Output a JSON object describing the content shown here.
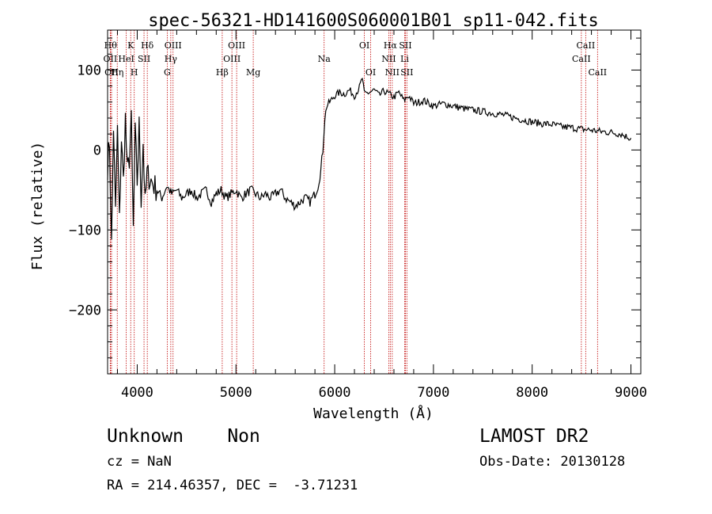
{
  "chart_data": {
    "type": "line",
    "title": "spec-56321-HD141600S060001B01_sp11-042.fits",
    "xlabel": "Wavelength (Å)",
    "ylabel": "Flux (relative)",
    "xlim": [
      3700,
      9100
    ],
    "ylim": [
      -280,
      150
    ],
    "xticks": [
      4000,
      5000,
      6000,
      7000,
      8000,
      9000
    ],
    "xtick_labels": [
      "4000",
      "5000",
      "6000",
      "7000",
      "8000",
      "9000"
    ],
    "yticks": [
      100,
      0,
      -100,
      -200
    ],
    "ytick_labels": [
      "100",
      "0",
      "−100",
      "−200"
    ],
    "line_color": "#000000",
    "marker_color": "#c00000",
    "series": [
      {
        "x": [
          3700,
          3720,
          3740,
          3760,
          3780,
          3800,
          3820,
          3840,
          3860,
          3880,
          3900,
          3920,
          3940,
          3960,
          3980,
          4000,
          4020,
          4040,
          4060,
          4080,
          4100,
          4150,
          4200,
          4250,
          4300,
          4350,
          4400,
          4450,
          4500,
          4550,
          4600,
          4650,
          4700,
          4750,
          4800,
          4850,
          4900,
          4950,
          5000,
          5050,
          5100,
          5150,
          5200,
          5250,
          5300,
          5350,
          5400,
          5450,
          5500,
          5550,
          5600,
          5650,
          5700,
          5750,
          5800,
          5830,
          5860,
          5880,
          5900,
          5920,
          5950,
          6000,
          6050,
          6100,
          6150,
          6200,
          6250,
          6280,
          6300,
          6350,
          6400,
          6450,
          6500,
          6550,
          6600,
          6650,
          6700,
          6750,
          6800,
          6900,
          7000,
          7100,
          7200,
          7300,
          7400,
          7500,
          7600,
          7700,
          7800,
          7900,
          8000,
          8100,
          8200,
          8300,
          8400,
          8500,
          8600,
          8700,
          8800,
          8900,
          8950,
          9000
        ],
        "y": [
          -20,
          10,
          -120,
          30,
          -80,
          25,
          -90,
          15,
          -40,
          40,
          -30,
          -10,
          35,
          -100,
          20,
          -40,
          30,
          -60,
          10,
          -70,
          -30,
          -40,
          -50,
          -60,
          -45,
          -55,
          -50,
          -60,
          -55,
          -50,
          -60,
          -55,
          -50,
          -65,
          -55,
          -50,
          -60,
          -55,
          -50,
          -60,
          -55,
          -50,
          -55,
          -60,
          -55,
          -60,
          -55,
          -50,
          -60,
          -65,
          -70,
          -65,
          -60,
          -65,
          -55,
          -45,
          -25,
          0,
          40,
          55,
          60,
          68,
          72,
          70,
          75,
          68,
          78,
          90,
          70,
          72,
          75,
          68,
          74,
          70,
          66,
          72,
          62,
          68,
          58,
          62,
          55,
          58,
          55,
          52,
          50,
          48,
          46,
          44,
          41,
          38,
          35,
          33,
          32,
          29,
          28,
          26,
          25,
          23,
          22,
          20,
          17,
          15
        ]
      }
    ],
    "lines": [
      {
        "x": 3730,
        "label": "Hθ",
        "row": 0
      },
      {
        "x": 3727,
        "label": "OII",
        "row": 1
      },
      {
        "x": 3740,
        "label": "OII",
        "row": 2
      },
      {
        "x": 3798,
        "label": "Hη",
        "row": 2
      },
      {
        "x": 3889,
        "label": "HeI",
        "row": 1
      },
      {
        "x": 3934,
        "label": "K",
        "row": 0
      },
      {
        "x": 3970,
        "label": "H",
        "row": 2
      },
      {
        "x": 4069,
        "label": "SII",
        "row": 1
      },
      {
        "x": 4102,
        "label": "Hδ",
        "row": 0
      },
      {
        "x": 4304,
        "label": "G",
        "row": 2
      },
      {
        "x": 4340,
        "label": "Hγ",
        "row": 1
      },
      {
        "x": 4363,
        "label": "OIII",
        "row": 0
      },
      {
        "x": 4861,
        "label": "Hβ",
        "row": 2
      },
      {
        "x": 4959,
        "label": "OIII",
        "row": 1
      },
      {
        "x": 5007,
        "label": "OIII",
        "row": 0
      },
      {
        "x": 5175,
        "label": "Mg",
        "row": 2
      },
      {
        "x": 5893,
        "label": "Na",
        "row": 1
      },
      {
        "x": 6300,
        "label": "OI",
        "row": 0
      },
      {
        "x": 6364,
        "label": "OI",
        "row": 2
      },
      {
        "x": 6548,
        "label": "NII",
        "row": 1
      },
      {
        "x": 6563,
        "label": "Hα",
        "row": 0
      },
      {
        "x": 6583,
        "label": "NII",
        "row": 2
      },
      {
        "x": 6708,
        "label": "Li",
        "row": 1
      },
      {
        "x": 6716,
        "label": "SII",
        "row": 0
      },
      {
        "x": 6731,
        "label": "SII",
        "row": 2
      },
      {
        "x": 8498,
        "label": "CaII",
        "row": 1
      },
      {
        "x": 8542,
        "label": "CaII",
        "row": 0
      },
      {
        "x": 8662,
        "label": "CaII",
        "row": 2
      }
    ]
  },
  "info": {
    "classification": "Unknown    Non",
    "survey": "LAMOST DR2",
    "cz": "cz = NaN",
    "obs_date": "Obs-Date: 20130128",
    "radec": "RA = 214.46357, DEC =  -3.71231"
  }
}
